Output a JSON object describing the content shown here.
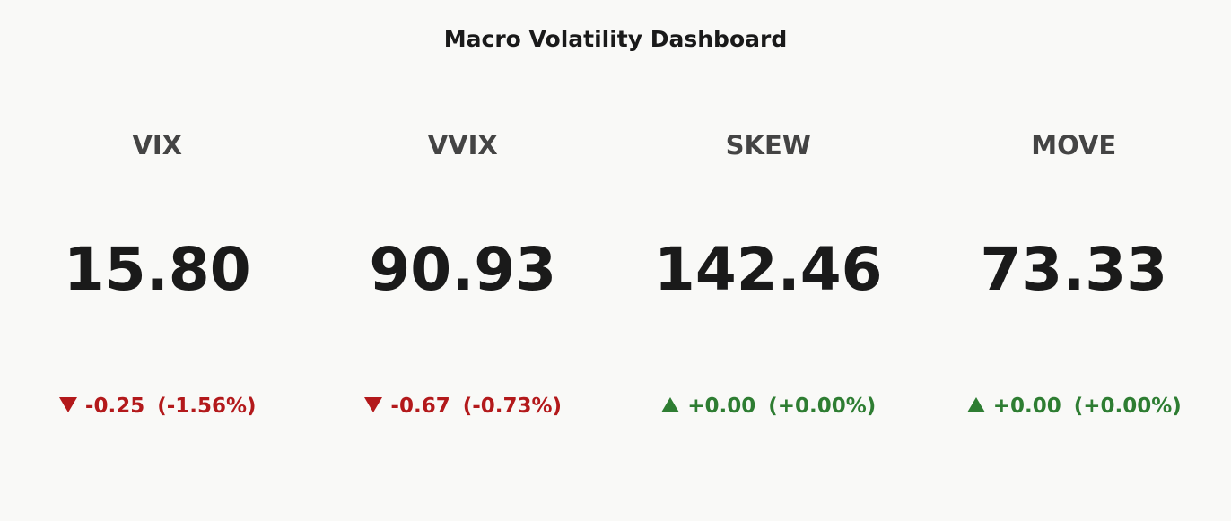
{
  "header": {
    "title": "Macro Volatility Dashboard"
  },
  "cards": [
    {
      "label": "VIX",
      "value": "15.80",
      "change": "-0.25",
      "change_pct": "(-1.56%)",
      "direction": "down",
      "color": "#b3191b"
    },
    {
      "label": "VVIX",
      "value": "90.93",
      "change": "-0.67",
      "change_pct": "(-0.73%)",
      "direction": "down",
      "color": "#b3191b"
    },
    {
      "label": "SKEW",
      "value": "142.46",
      "change": "+0.00",
      "change_pct": "(+0.00%)",
      "direction": "up",
      "color": "#2e7d32"
    },
    {
      "label": "MOVE",
      "value": "73.33",
      "change": "+0.00",
      "change_pct": "(+0.00%)",
      "direction": "up",
      "color": "#2e7d32"
    }
  ]
}
